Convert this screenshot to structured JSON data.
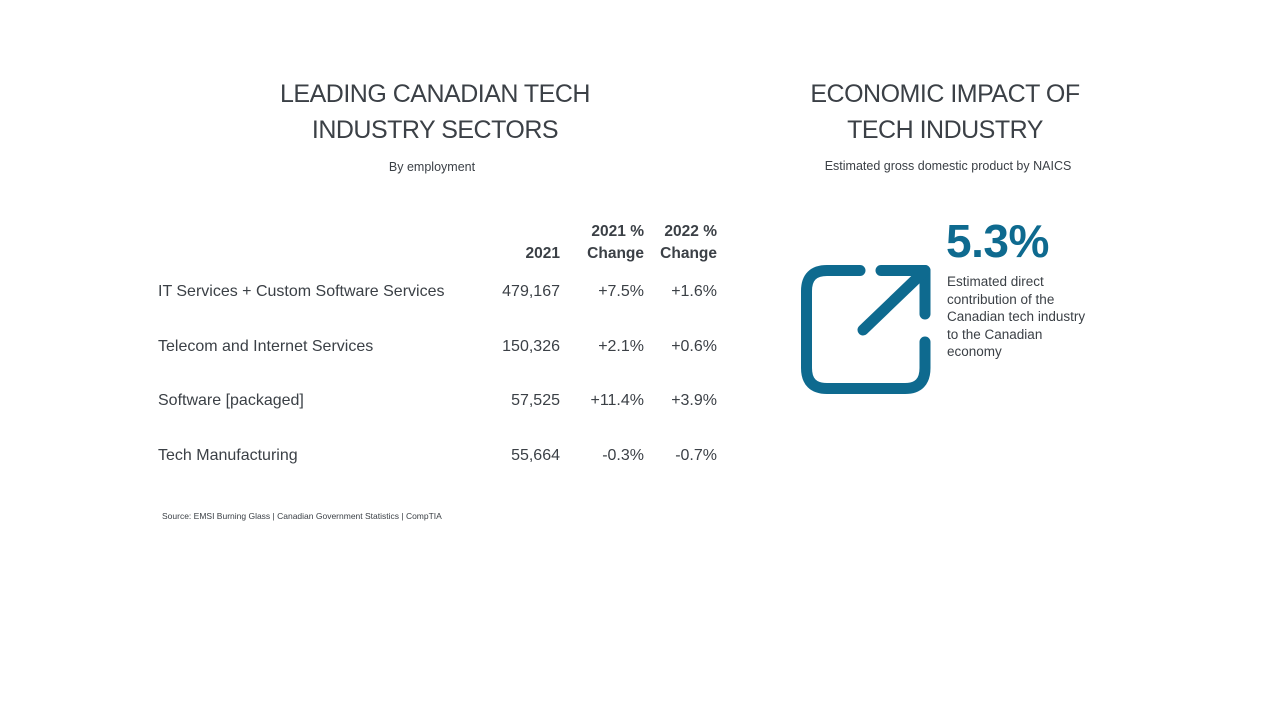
{
  "left_panel": {
    "title_line1": "LEADING CANADIAN TECH",
    "title_line2": "INDUSTRY SECTORS",
    "subtitle": "By employment",
    "table": {
      "headers": [
        "",
        "2021",
        "2021 % Change",
        "2022 % Change"
      ],
      "header_2021": "2021",
      "header_change21_line1": "2021 %",
      "header_change21_line2": "Change",
      "header_change22_line1": "2022 %",
      "header_change22_line2": "Change",
      "rows": [
        {
          "sector": "IT Services + Custom Software Services",
          "y2021": "479,167",
          "change2021": "+7.5%",
          "change2022": "+1.6%"
        },
        {
          "sector": "Telecom and Internet Services",
          "y2021": "150,326",
          "change2021": "+2.1%",
          "change2022": "+0.6%"
        },
        {
          "sector": "Software [packaged]",
          "y2021": "57,525",
          "change2021": "+11.4%",
          "change2022": "+3.9%"
        },
        {
          "sector": "Tech Manufacturing",
          "y2021": "55,664",
          "change2021": "-0.3%",
          "change2022": "-0.7%"
        }
      ]
    },
    "source": "Source: EMSI Burning Glass | Canadian Government Statistics | CompTIA"
  },
  "right_panel": {
    "title_line1": "ECONOMIC IMPACT OF",
    "title_line2": "TECH INDUSTRY",
    "subtitle": "Estimated gross domestic product by NAICS",
    "stat_value": "5.3%",
    "stat_description": "Estimated direct contribution of the Canadian tech industry to the Canadian economy",
    "icon": "external-link-icon",
    "accent_color": "#0e6a8f"
  }
}
